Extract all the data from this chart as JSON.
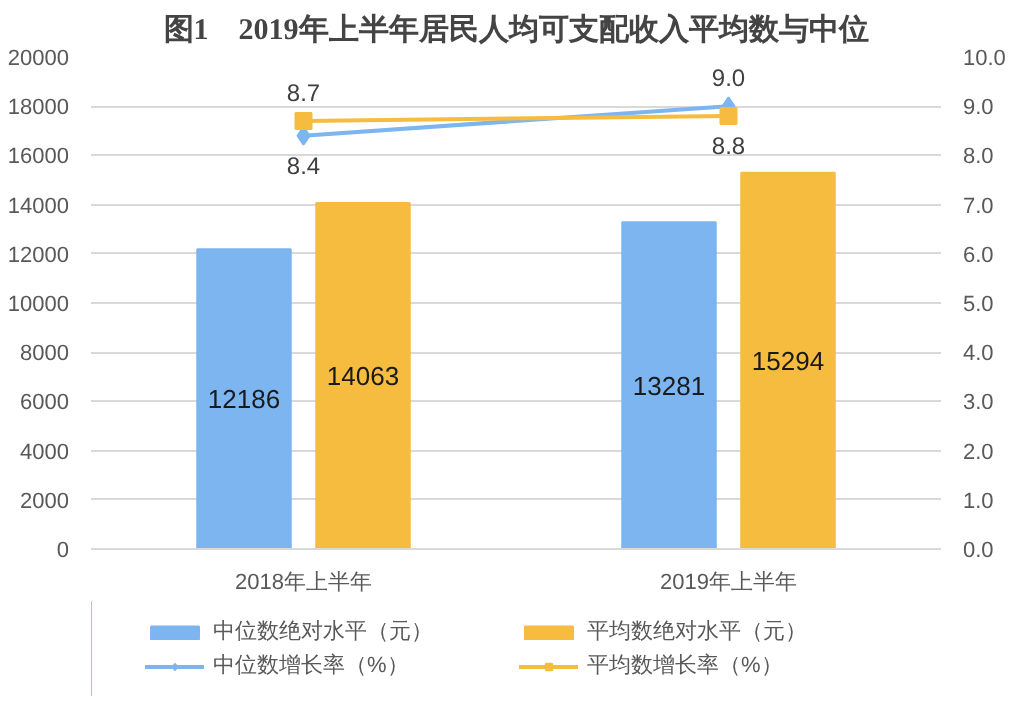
{
  "chart_data": {
    "type": "bar",
    "title": "图1　2019年上半年居民人均可支配收入平均数与中位",
    "categories": [
      "2018年上半年",
      "2019年上半年"
    ],
    "series": [
      {
        "name": "中位数绝对水平（元）",
        "color": "#7cb5f0",
        "values": [
          12186,
          13281
        ]
      },
      {
        "name": "平均数绝对水平（元）",
        "color": "#f5bc3f",
        "values": [
          14063,
          15294
        ]
      },
      {
        "name": "中位数增长率（%）",
        "type": "line",
        "axis": "y2",
        "marker": "diamond",
        "color": "#7cb5f0",
        "values": [
          8.4,
          9.0
        ],
        "value_labels": [
          "8.4",
          "9.0"
        ]
      },
      {
        "name": "平均数增长率（%）",
        "type": "line",
        "axis": "y2",
        "marker": "square",
        "color": "#f5bc3f",
        "values": [
          8.7,
          8.8
        ],
        "value_labels": [
          "8.7",
          "8.8"
        ]
      }
    ],
    "ylim": [
      0,
      20000
    ],
    "yticks": [
      0,
      2000,
      4000,
      6000,
      8000,
      10000,
      12000,
      14000,
      16000,
      18000,
      20000
    ],
    "y2lim": [
      0,
      10
    ],
    "y2ticks": [
      {
        "value": 0,
        "label": "0.0"
      },
      {
        "value": 1,
        "label": "1.0"
      },
      {
        "value": 2,
        "label": "2.0"
      },
      {
        "value": 3,
        "label": "3.0"
      },
      {
        "value": 4,
        "label": "4.0"
      },
      {
        "value": 5,
        "label": "5.0"
      },
      {
        "value": 6,
        "label": "6.0"
      },
      {
        "value": 7,
        "label": "7.0"
      },
      {
        "value": 8,
        "label": "8.0"
      },
      {
        "value": 9,
        "label": "9.0"
      },
      {
        "value": 10,
        "label": "10.0"
      }
    ],
    "data_labels": true,
    "grid": "y",
    "legend": "bottom"
  }
}
